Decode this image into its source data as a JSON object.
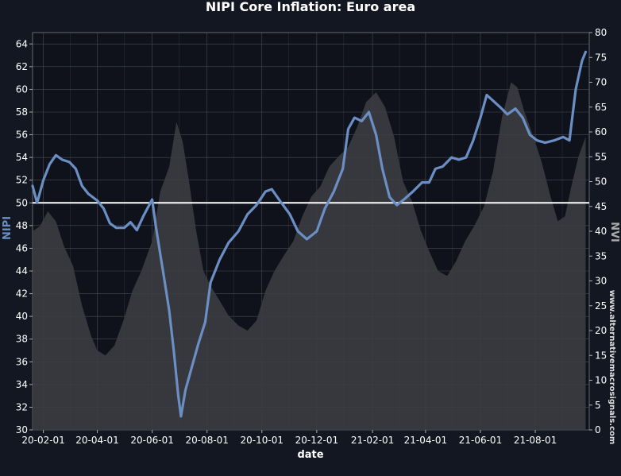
{
  "chart_data": {
    "type": "line",
    "title": "NIPI Core Inflation: Euro area",
    "xlabel": "date",
    "ylabel_left": "NIPI",
    "ylabel_right": "NVI",
    "watermark": "www.alternativemacrosignals.com",
    "x_range": [
      "2020-01-20",
      "2021-09-30"
    ],
    "x_ticks": [
      "20-02-01",
      "20-04-01",
      "20-06-01",
      "20-08-01",
      "20-10-01",
      "20-12-01",
      "21-02-01",
      "21-04-01",
      "21-06-01",
      "21-08-01"
    ],
    "x_tick_dates": [
      "2020-02-01",
      "2020-04-01",
      "2020-06-01",
      "2020-08-01",
      "2020-10-01",
      "2020-12-01",
      "2021-02-01",
      "2021-04-01",
      "2021-06-01",
      "2021-08-01"
    ],
    "ylim_left": [
      30,
      65
    ],
    "y_ticks_left": [
      30,
      32,
      34,
      36,
      38,
      40,
      42,
      44,
      46,
      48,
      50,
      52,
      54,
      56,
      58,
      60,
      62,
      64
    ],
    "ylim_right": [
      0,
      80
    ],
    "y_ticks_right": [
      0,
      5,
      10,
      15,
      20,
      25,
      30,
      35,
      40,
      45,
      50,
      55,
      60,
      65,
      70,
      75,
      80
    ],
    "reference_line": 50,
    "grid": true,
    "colors": {
      "background": "#131722",
      "plot_background": "#0f121b",
      "grid": "#4a4d55",
      "nipi_line": "#6b8ec4",
      "nvi_area": "#3c3d41",
      "reference_line": "#ffffff",
      "text": "#ffffff"
    },
    "series": [
      {
        "name": "NIPI",
        "axis": "left",
        "style": "line",
        "points": [
          [
            "2020-01-20",
            51.5
          ],
          [
            "2020-01-25",
            50.0
          ],
          [
            "2020-02-01",
            52.0
          ],
          [
            "2020-02-08",
            53.4
          ],
          [
            "2020-02-15",
            54.2
          ],
          [
            "2020-02-22",
            53.8
          ],
          [
            "2020-03-01",
            53.6
          ],
          [
            "2020-03-08",
            53.0
          ],
          [
            "2020-03-15",
            51.5
          ],
          [
            "2020-03-22",
            50.8
          ],
          [
            "2020-04-01",
            50.2
          ],
          [
            "2020-04-08",
            49.5
          ],
          [
            "2020-04-15",
            48.2
          ],
          [
            "2020-04-22",
            47.8
          ],
          [
            "2020-05-01",
            47.8
          ],
          [
            "2020-05-08",
            48.3
          ],
          [
            "2020-05-15",
            47.6
          ],
          [
            "2020-05-22",
            48.8
          ],
          [
            "2020-06-01",
            50.3
          ],
          [
            "2020-06-05",
            48.0
          ],
          [
            "2020-06-10",
            45.5
          ],
          [
            "2020-06-15",
            43.0
          ],
          [
            "2020-06-20",
            40.5
          ],
          [
            "2020-06-25",
            37.0
          ],
          [
            "2020-06-30",
            33.0
          ],
          [
            "2020-07-03",
            31.2
          ],
          [
            "2020-07-08",
            33.5
          ],
          [
            "2020-07-15",
            35.5
          ],
          [
            "2020-07-22",
            37.5
          ],
          [
            "2020-07-30",
            39.5
          ],
          [
            "2020-08-05",
            43.0
          ],
          [
            "2020-08-15",
            45.0
          ],
          [
            "2020-08-25",
            46.5
          ],
          [
            "2020-09-05",
            47.5
          ],
          [
            "2020-09-15",
            49.0
          ],
          [
            "2020-09-25",
            49.8
          ],
          [
            "2020-10-05",
            51.0
          ],
          [
            "2020-10-12",
            51.2
          ],
          [
            "2020-10-20",
            50.3
          ],
          [
            "2020-11-01",
            49.0
          ],
          [
            "2020-11-10",
            47.5
          ],
          [
            "2020-11-20",
            46.8
          ],
          [
            "2020-12-01",
            47.5
          ],
          [
            "2020-12-10",
            49.5
          ],
          [
            "2020-12-20",
            51.0
          ],
          [
            "2020-12-30",
            53.0
          ],
          [
            "2021-01-05",
            56.5
          ],
          [
            "2021-01-12",
            57.5
          ],
          [
            "2021-01-20",
            57.2
          ],
          [
            "2021-01-28",
            58.0
          ],
          [
            "2021-02-05",
            56.0
          ],
          [
            "2021-02-12",
            53.0
          ],
          [
            "2021-02-20",
            50.5
          ],
          [
            "2021-02-28",
            49.8
          ],
          [
            "2021-03-08",
            50.3
          ],
          [
            "2021-03-18",
            51.0
          ],
          [
            "2021-03-28",
            51.8
          ],
          [
            "2021-04-05",
            51.8
          ],
          [
            "2021-04-12",
            53.0
          ],
          [
            "2021-04-20",
            53.2
          ],
          [
            "2021-04-30",
            54.0
          ],
          [
            "2021-05-08",
            53.8
          ],
          [
            "2021-05-16",
            54.0
          ],
          [
            "2021-05-24",
            55.5
          ],
          [
            "2021-06-01",
            57.5
          ],
          [
            "2021-06-08",
            59.5
          ],
          [
            "2021-06-15",
            59.0
          ],
          [
            "2021-06-22",
            58.5
          ],
          [
            "2021-07-01",
            57.8
          ],
          [
            "2021-07-10",
            58.3
          ],
          [
            "2021-07-18",
            57.5
          ],
          [
            "2021-07-26",
            56.0
          ],
          [
            "2021-08-03",
            55.5
          ],
          [
            "2021-08-12",
            55.3
          ],
          [
            "2021-08-22",
            55.5
          ],
          [
            "2021-09-01",
            55.8
          ],
          [
            "2021-09-08",
            55.5
          ],
          [
            "2021-09-15",
            60.0
          ],
          [
            "2021-09-22",
            62.5
          ],
          [
            "2021-09-26",
            63.3
          ]
        ]
      },
      {
        "name": "NVI",
        "axis": "right",
        "style": "area",
        "points": [
          [
            "2020-01-20",
            40
          ],
          [
            "2020-01-28",
            41
          ],
          [
            "2020-02-06",
            44
          ],
          [
            "2020-02-15",
            42
          ],
          [
            "2020-02-24",
            37
          ],
          [
            "2020-03-05",
            33
          ],
          [
            "2020-03-15",
            25
          ],
          [
            "2020-03-25",
            19
          ],
          [
            "2020-04-01",
            16
          ],
          [
            "2020-04-10",
            15
          ],
          [
            "2020-04-20",
            17
          ],
          [
            "2020-04-30",
            22
          ],
          [
            "2020-05-10",
            28
          ],
          [
            "2020-05-20",
            32
          ],
          [
            "2020-06-01",
            38
          ],
          [
            "2020-06-10",
            48
          ],
          [
            "2020-06-20",
            53
          ],
          [
            "2020-06-28",
            62
          ],
          [
            "2020-07-05",
            58
          ],
          [
            "2020-07-12",
            50
          ],
          [
            "2020-07-20",
            40
          ],
          [
            "2020-07-28",
            32
          ],
          [
            "2020-08-05",
            29
          ],
          [
            "2020-08-15",
            26
          ],
          [
            "2020-08-25",
            23
          ],
          [
            "2020-09-05",
            21
          ],
          [
            "2020-09-15",
            20
          ],
          [
            "2020-09-25",
            22
          ],
          [
            "2020-10-05",
            28
          ],
          [
            "2020-10-15",
            32
          ],
          [
            "2020-10-25",
            35
          ],
          [
            "2020-11-05",
            38
          ],
          [
            "2020-11-15",
            43
          ],
          [
            "2020-11-25",
            47
          ],
          [
            "2020-12-05",
            49
          ],
          [
            "2020-12-15",
            53
          ],
          [
            "2020-12-25",
            55
          ],
          [
            "2021-01-05",
            57
          ],
          [
            "2021-01-15",
            61
          ],
          [
            "2021-01-25",
            66
          ],
          [
            "2021-02-05",
            68
          ],
          [
            "2021-02-15",
            65
          ],
          [
            "2021-02-25",
            59
          ],
          [
            "2021-03-07",
            50
          ],
          [
            "2021-03-17",
            46
          ],
          [
            "2021-03-27",
            40
          ],
          [
            "2021-04-05",
            36
          ],
          [
            "2021-04-15",
            32
          ],
          [
            "2021-04-25",
            31
          ],
          [
            "2021-05-05",
            34
          ],
          [
            "2021-05-15",
            38
          ],
          [
            "2021-05-25",
            41
          ],
          [
            "2021-06-05",
            45
          ],
          [
            "2021-06-15",
            52
          ],
          [
            "2021-06-25",
            63
          ],
          [
            "2021-07-05",
            70
          ],
          [
            "2021-07-12",
            69
          ],
          [
            "2021-07-20",
            64
          ],
          [
            "2021-07-30",
            59
          ],
          [
            "2021-08-08",
            54
          ],
          [
            "2021-08-18",
            47
          ],
          [
            "2021-08-26",
            42
          ],
          [
            "2021-09-03",
            43
          ],
          [
            "2021-09-10",
            49
          ],
          [
            "2021-09-18",
            55
          ],
          [
            "2021-09-26",
            59
          ]
        ]
      }
    ]
  }
}
